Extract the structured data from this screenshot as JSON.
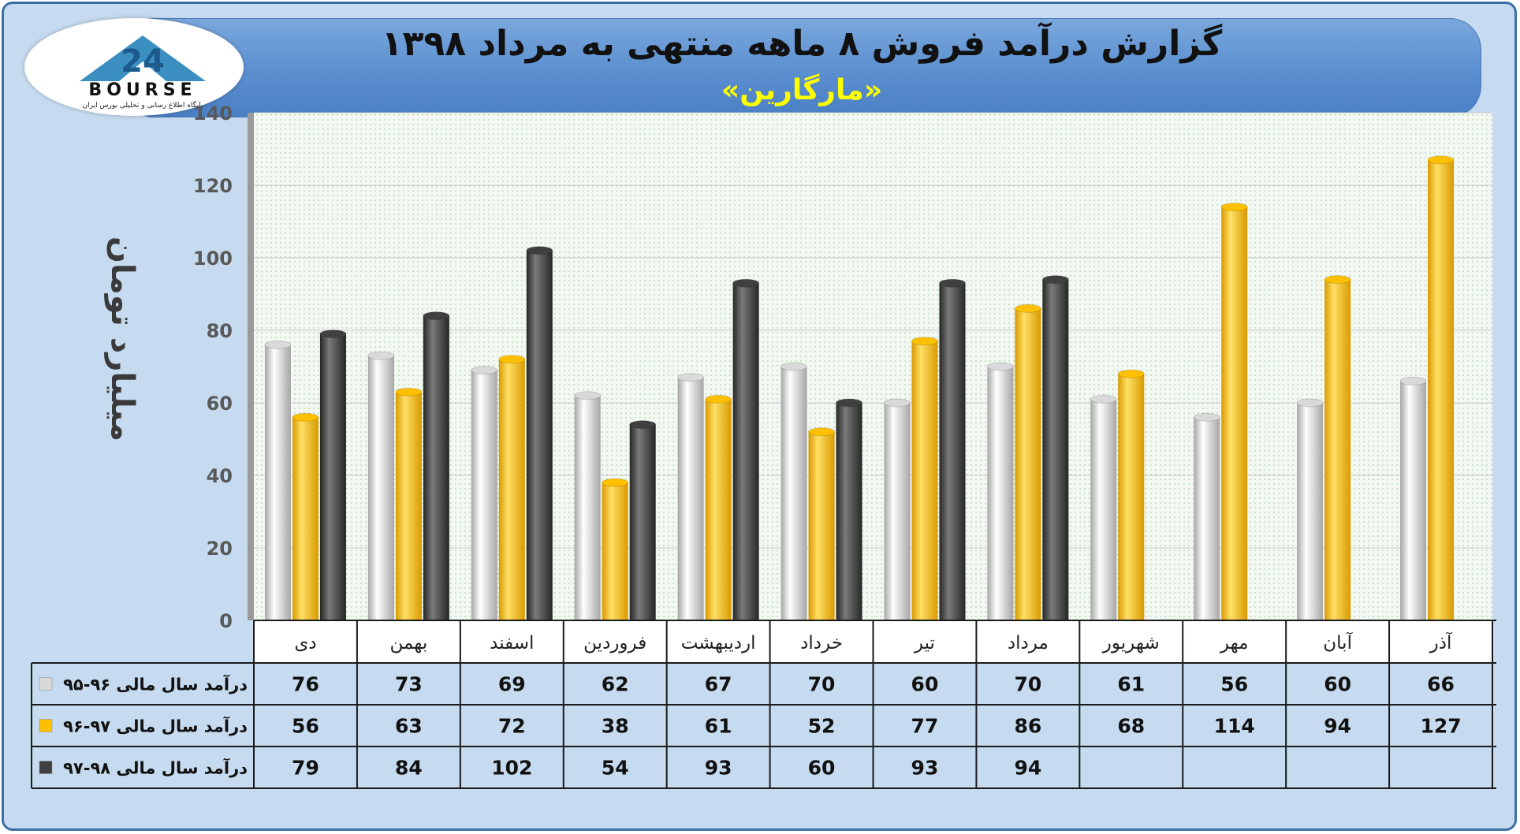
{
  "header": {
    "title": "گزارش درآمد فروش ۸ ماهه منتهی به مرداد ۱۳۹۸",
    "subtitle": "«مارگارین»"
  },
  "logo": {
    "brand_text": "BOURSE",
    "tagline": "پایگاه اطلاع رسانی و تحلیلی بورس ایران",
    "number": "24"
  },
  "colors": {
    "series1": "#d9d9d9",
    "series2": "#ffc000",
    "series3": "#404040",
    "header_bg": "#5b8fd0",
    "frame_bg": "#c6dbef",
    "subtitle": "#ffff00"
  },
  "chart_data": {
    "type": "bar",
    "ylabel": "میلیارد تومان",
    "ylim": [
      0,
      140
    ],
    "yticks": [
      0,
      20,
      40,
      60,
      80,
      100,
      120,
      140
    ],
    "grid": true,
    "categories": [
      "دی",
      "بهمن",
      "اسفند",
      "فروردین",
      "اردیبهشت",
      "خرداد",
      "تیر",
      "مرداد",
      "شهریور",
      "مهر",
      "آبان",
      "آذر"
    ],
    "series": [
      {
        "name": "درآمد سال مالی ۹۶-۹۵",
        "color": "#d9d9d9",
        "values": [
          76,
          73,
          69,
          62,
          67,
          70,
          60,
          70,
          61,
          56,
          60,
          66
        ]
      },
      {
        "name": "درآمد سال مالی ۹۷-۹۶",
        "color": "#ffc000",
        "values": [
          56,
          63,
          72,
          38,
          61,
          52,
          77,
          86,
          68,
          114,
          94,
          127
        ]
      },
      {
        "name": "درآمد سال مالی ۹۸-۹۷",
        "color": "#404040",
        "values": [
          79,
          84,
          102,
          54,
          93,
          60,
          93,
          94,
          null,
          null,
          null,
          null
        ]
      }
    ]
  }
}
